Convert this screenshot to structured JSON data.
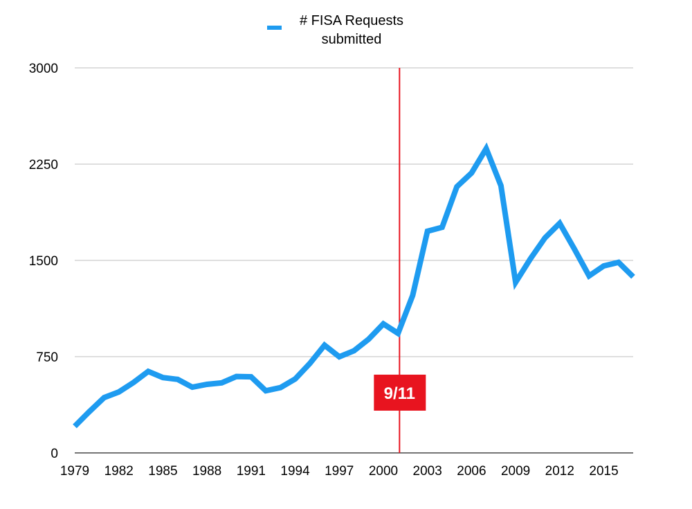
{
  "chart_data": {
    "type": "line",
    "title": "",
    "xlabel": "",
    "ylabel": "",
    "xlim": [
      1979,
      2017
    ],
    "ylim": [
      0,
      3000
    ],
    "yticks": [
      0,
      750,
      1500,
      2250,
      3000
    ],
    "ytick_labels": [
      "0",
      "750",
      "1500",
      "2250",
      "3000"
    ],
    "xtick_labels": [
      "1979",
      "1982",
      "1985",
      "1988",
      "1991",
      "1994",
      "1997",
      "2000",
      "2003",
      "2006",
      "2009",
      "2012",
      "2015"
    ],
    "grid": true,
    "legend_position": "top-center",
    "series": [
      {
        "name": "# FISA Requests submitted",
        "legend_lines": [
          "# FISA Requests",
          "submitted"
        ],
        "color": "#1E9BF0",
        "x": [
          1979,
          1980,
          1981,
          1982,
          1983,
          1984,
          1985,
          1986,
          1987,
          1988,
          1989,
          1990,
          1991,
          1992,
          1993,
          1994,
          1995,
          1996,
          1997,
          1998,
          1999,
          2000,
          2001,
          2002,
          2003,
          2004,
          2005,
          2006,
          2007,
          2008,
          2009,
          2010,
          2011,
          2012,
          2013,
          2014,
          2015,
          2016,
          2017
        ],
        "values": [
          207,
          322,
          431,
          475,
          549,
          635,
          587,
          573,
          512,
          534,
          546,
          595,
          593,
          484,
          509,
          576,
          697,
          839,
          749,
          796,
          886,
          1005,
          932,
          1228,
          1727,
          1758,
          2074,
          2181,
          2371,
          2082,
          1329,
          1511,
          1676,
          1789,
          1588,
          1379,
          1457,
          1485,
          1372
        ]
      }
    ],
    "annotations": [
      {
        "label": "9/11",
        "x": 2001.1,
        "color": "#E8141F"
      }
    ]
  }
}
